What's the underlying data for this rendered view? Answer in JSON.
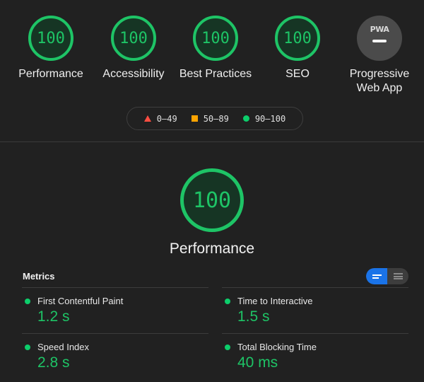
{
  "colors": {
    "pass": "#0cce6b",
    "average": "#ffa400",
    "fail": "#ff4e42",
    "toggle_active": "#1a73e8"
  },
  "summary": {
    "gauges": [
      {
        "score": "100",
        "label": "Performance"
      },
      {
        "score": "100",
        "label": "Accessibility"
      },
      {
        "score": "100",
        "label": "Best Practices"
      },
      {
        "score": "100",
        "label": "SEO"
      }
    ],
    "pwa": {
      "badge": "PWA",
      "label_line1": "Progressive",
      "label_line2": "Web App"
    }
  },
  "legend": {
    "fail": "0–49",
    "average": "50–89",
    "pass": "90–100"
  },
  "category": {
    "score": "100",
    "title": "Performance"
  },
  "metrics": {
    "title": "Metrics",
    "items": [
      {
        "name": "First Contentful Paint",
        "value": "1.2 s"
      },
      {
        "name": "Time to Interactive",
        "value": "1.5 s"
      },
      {
        "name": "Speed Index",
        "value": "2.8 s"
      },
      {
        "name": "Total Blocking Time",
        "value": "40 ms"
      }
    ]
  }
}
